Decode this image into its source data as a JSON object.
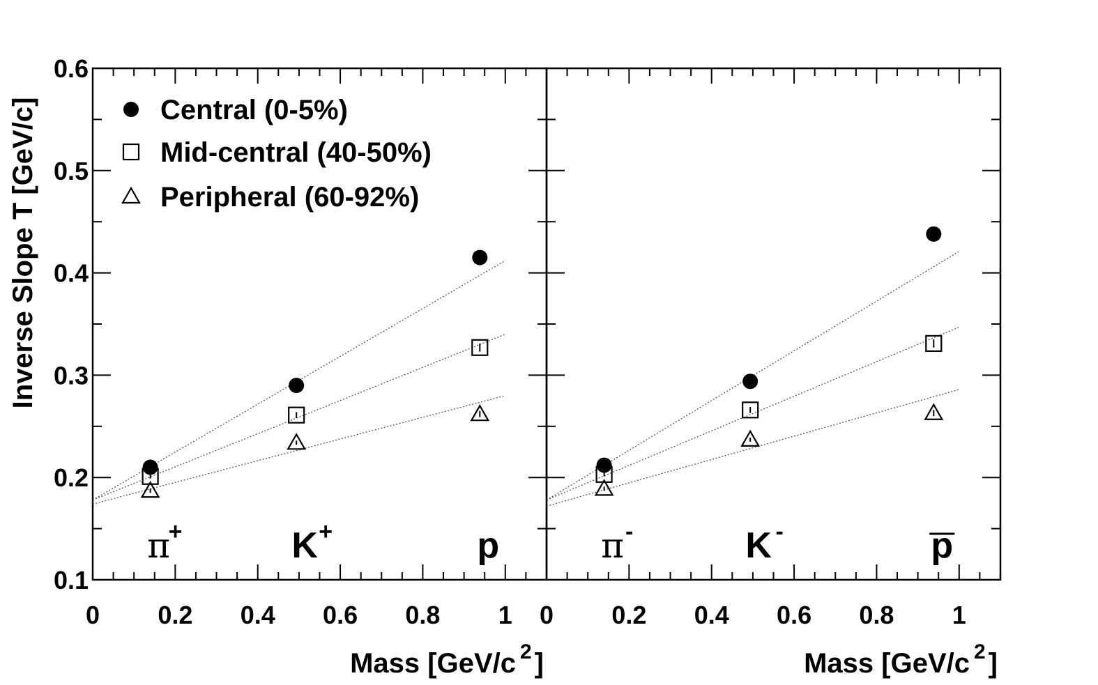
{
  "chart_data": {
    "type": "scatter",
    "ylabel": "Inverse Slope T [GeV/c]",
    "ylim": [
      0.1,
      0.6
    ],
    "yticks": [
      "0.1",
      "0.2",
      "0.3",
      "0.4",
      "0.5",
      "0.6"
    ],
    "legend": {
      "placement": "top-left",
      "entries": [
        {
          "label": "Central (0-5%)",
          "marker": "filled-circle"
        },
        {
          "label": "Mid-central (40-50%)",
          "marker": "open-square"
        },
        {
          "label": "Peripheral (60-92%)",
          "marker": "open-triangle"
        }
      ]
    },
    "panels": [
      {
        "xlabel_main": "Mass [GeV/c",
        "xlabel_sup": "2",
        "xlabel_close": "]",
        "xlim": [
          0,
          1.1
        ],
        "xticks": [
          "0",
          "0.2",
          "0.4",
          "0.6",
          "0.8",
          "1"
        ],
        "particles": [
          {
            "x": 0.1396,
            "base": "π",
            "sup": "+"
          },
          {
            "x": 0.4937,
            "base": "K",
            "sup": "+"
          },
          {
            "x": 0.9383,
            "base": "p",
            "sup": ""
          }
        ],
        "series": [
          {
            "marker": "filled-circle",
            "x": [
              0.1396,
              0.4937,
              0.9383
            ],
            "y": [
              0.21,
              0.29,
              0.415
            ],
            "yerr": [
              0.003,
              0.003,
              0.007
            ],
            "fit": {
              "intercept": 0.178,
              "slope": 0.234
            }
          },
          {
            "marker": "open-square",
            "x": [
              0.1396,
              0.4937,
              0.9383
            ],
            "y": [
              0.201,
              0.261,
              0.327
            ],
            "yerr": [
              0.002,
              0.003,
              0.004
            ],
            "fit": {
              "intercept": 0.178,
              "slope": 0.162
            }
          },
          {
            "marker": "open-triangle",
            "x": [
              0.1396,
              0.4937,
              0.9383
            ],
            "y": [
              0.187,
              0.234,
              0.262
            ],
            "yerr": [
              0.002,
              0.002,
              0.003
            ],
            "fit": {
              "intercept": 0.174,
              "slope": 0.106
            }
          }
        ]
      },
      {
        "xlabel_main": "Mass [GeV/c",
        "xlabel_sup": "2",
        "xlabel_close": "]",
        "xlim": [
          0,
          1.1
        ],
        "xticks": [
          "0",
          "0.2",
          "0.4",
          "0.6",
          "0.8",
          "1"
        ],
        "particles": [
          {
            "x": 0.1396,
            "base": "π",
            "sup": "-"
          },
          {
            "x": 0.4937,
            "base": "K",
            "sup": "-"
          },
          {
            "x": 0.9383,
            "base": "p",
            "sup": "",
            "overline": true
          }
        ],
        "series": [
          {
            "marker": "filled-circle",
            "x": [
              0.1396,
              0.4937,
              0.9383
            ],
            "y": [
              0.212,
              0.294,
              0.438
            ],
            "yerr": [
              0.003,
              0.003,
              0.007
            ],
            "fit": {
              "intercept": 0.178,
              "slope": 0.243
            }
          },
          {
            "marker": "open-square",
            "x": [
              0.1396,
              0.4937,
              0.9383
            ],
            "y": [
              0.203,
              0.266,
              0.331
            ],
            "yerr": [
              0.002,
              0.003,
              0.004
            ],
            "fit": {
              "intercept": 0.178,
              "slope": 0.169
            }
          },
          {
            "marker": "open-triangle",
            "x": [
              0.1396,
              0.4937,
              0.9383
            ],
            "y": [
              0.189,
              0.237,
              0.263
            ],
            "yerr": [
              0.002,
              0.002,
              0.003
            ],
            "fit": {
              "intercept": 0.172,
              "slope": 0.114
            }
          }
        ]
      }
    ]
  }
}
